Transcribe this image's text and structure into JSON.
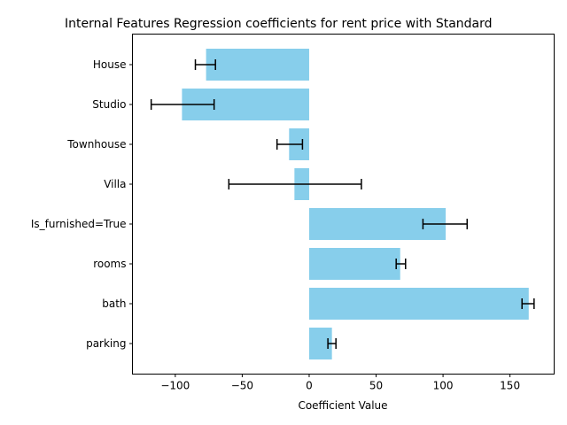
{
  "chart_data": {
    "type": "bar",
    "orientation": "horizontal",
    "title": "Internal Features Regression coefficients for rent price with Standard",
    "xlabel": "Coefficient Value",
    "ylabel": "",
    "xlim": [
      -132,
      183
    ],
    "xticks": [
      -100,
      -50,
      0,
      50,
      100,
      150
    ],
    "xtick_labels": [
      "−100",
      "−50",
      "0",
      "50",
      "100",
      "150"
    ],
    "categories": [
      "House",
      "Studio",
      "Townhouse",
      "Villa",
      "Is_furnished=True",
      "rooms",
      "bath",
      "parking"
    ],
    "values": [
      -77,
      -95,
      -15,
      -11,
      102,
      68,
      164,
      17
    ],
    "error_low": [
      -85,
      -118,
      -24,
      -60,
      85,
      65,
      159,
      14
    ],
    "error_high": [
      -70,
      -71,
      -5,
      39,
      118,
      72,
      168,
      20
    ],
    "bar_color": "#87ceeb",
    "error_color": "#000000",
    "grid": false
  }
}
